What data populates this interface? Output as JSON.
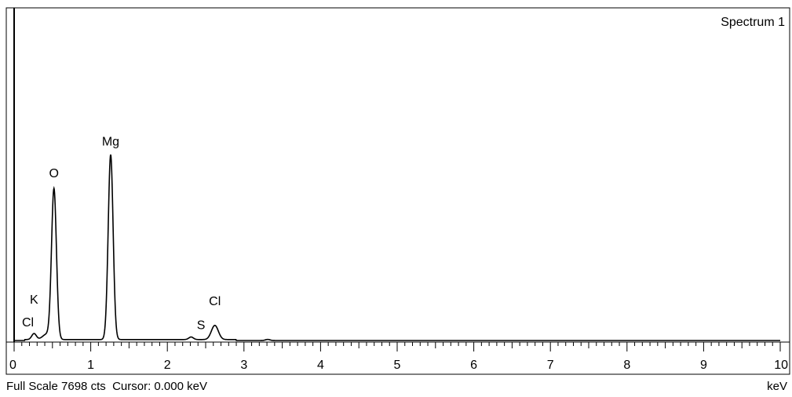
{
  "chart_data": {
    "type": "line",
    "title": "Spectrum 1",
    "xlabel": "keV",
    "ylabel": "",
    "xlim": [
      0,
      10
    ],
    "ylim": [
      0,
      7698
    ],
    "x_ticks": [
      "0",
      "1",
      "2",
      "3",
      "4",
      "5",
      "6",
      "7",
      "8",
      "9",
      "10"
    ],
    "grid": false,
    "legend": "none",
    "line_color": "#000000",
    "full_scale_text": "Full Scale 7698 cts",
    "cursor_text": "Cursor: 0.000 keV",
    "peaks": [
      {
        "label": "Cl",
        "energy": 0.26,
        "counts": 140
      },
      {
        "label": "O",
        "energy": 0.52,
        "counts": 3500
      },
      {
        "label": "Mg",
        "energy": 1.26,
        "counts": 4300
      },
      {
        "label": "S",
        "energy": 2.31,
        "counts": 60
      },
      {
        "label": "Cl",
        "energy": 2.62,
        "counts": 330
      }
    ],
    "annotations": [
      {
        "text": "Cl",
        "energy": 0.18,
        "counts": 330
      },
      {
        "text": "K",
        "energy": 0.26,
        "counts": 860
      },
      {
        "text": "O",
        "energy": 0.52,
        "counts": 3790
      },
      {
        "text": "Mg",
        "energy": 1.26,
        "counts": 4530
      },
      {
        "text": "S",
        "energy": 2.44,
        "counts": 260
      },
      {
        "text": "Cl",
        "energy": 2.62,
        "counts": 820
      }
    ]
  }
}
